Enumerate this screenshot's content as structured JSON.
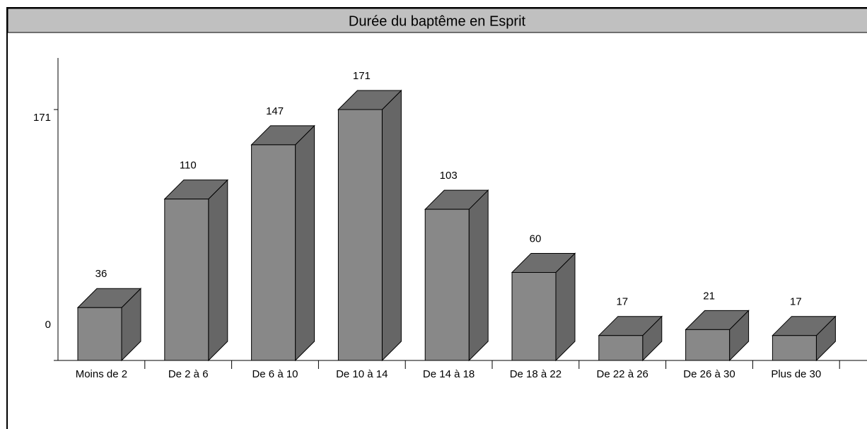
{
  "chart_data": {
    "type": "bar3d",
    "title": "Durée du baptême en Esprit",
    "categories": [
      "Moins de 2",
      "De 2 à 6",
      "De 6 à 10",
      "De 10 à 14",
      "De 14 à 18",
      "De 18 à 22",
      "De 22 à 26",
      "De 26 à 30",
      "Plus de 30"
    ],
    "values": [
      36,
      110,
      147,
      171,
      103,
      60,
      17,
      21,
      17
    ],
    "color": "#888888",
    "ylim": [
      0,
      171
    ],
    "yticks": [
      0,
      171
    ]
  }
}
